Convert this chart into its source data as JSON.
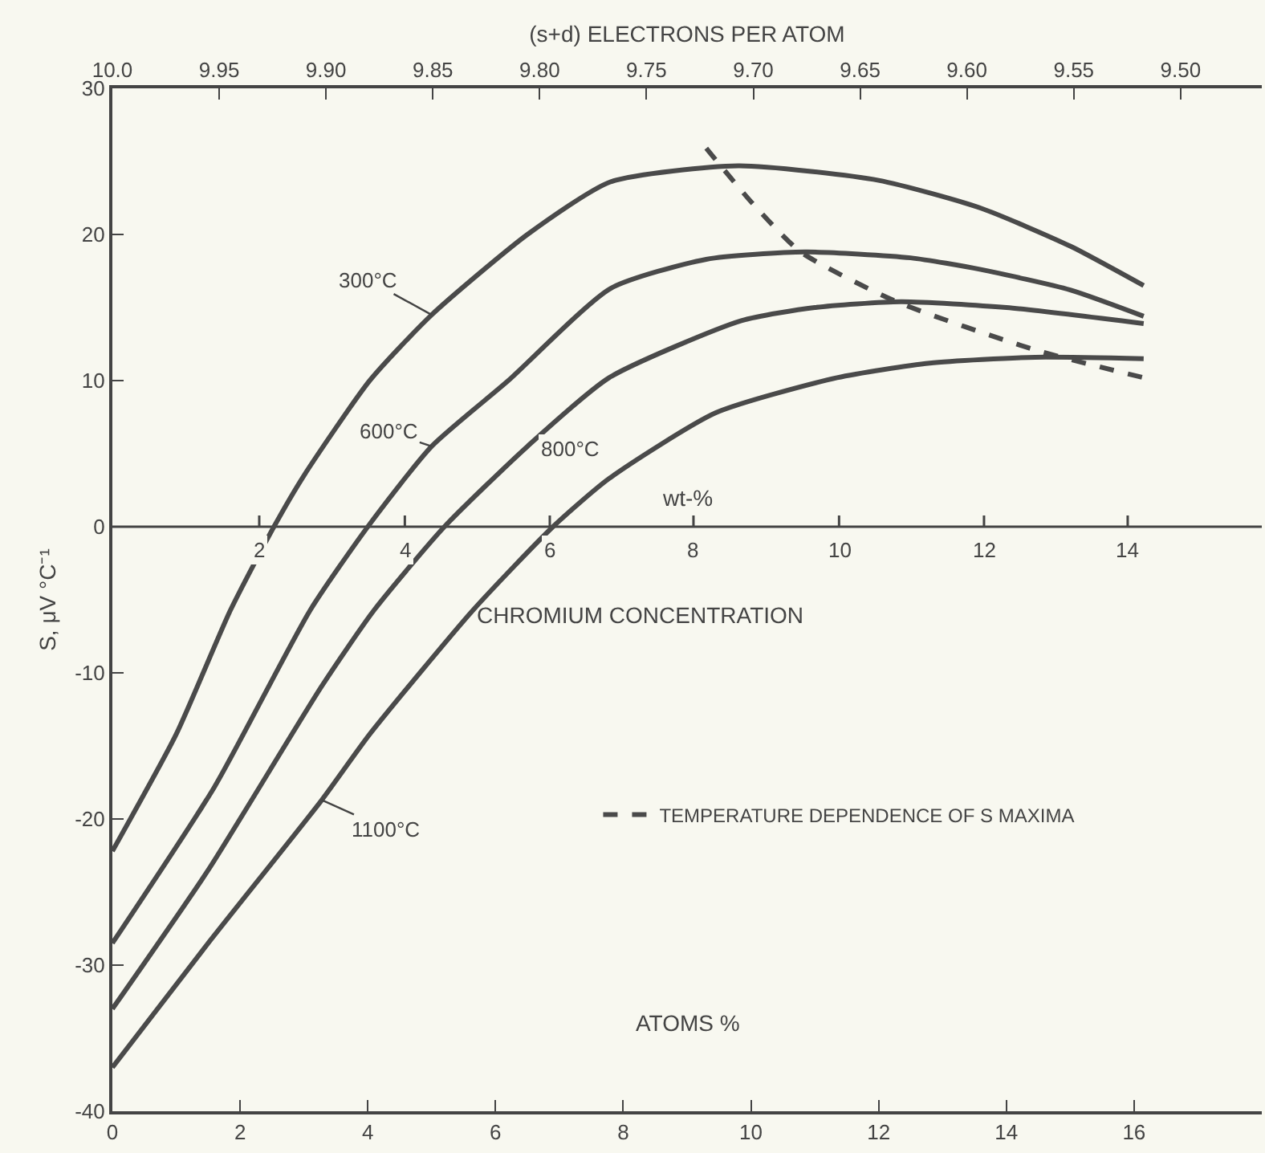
{
  "chart_data": {
    "type": "line",
    "xlabel": "ATOMS %",
    "ylabel": "S, μV °C⁻¹",
    "x2label": "(s+d) ELECTRONS PER ATOM",
    "annotations": [
      "CHROMIUM CONCENTRATION",
      {
        "text": "2",
        "x": 2.3,
        "y": 0
      },
      {
        "text": "4",
        "x": 4.58,
        "y": 0
      },
      {
        "text": "6",
        "x": 6.85,
        "y": 0
      },
      {
        "text": "8",
        "x": 9.1,
        "y": 0
      },
      {
        "text": "10",
        "x": 11.38,
        "y": 0
      },
      {
        "text": "12",
        "x": 13.65,
        "y": 0
      },
      {
        "text": "14",
        "x": 15.9,
        "y": 0
      }
    ],
    "ref_lines": [
      {
        "axis": "y",
        "value": 0,
        "label": "wt-%",
        "color": "#444444"
      }
    ],
    "xlim": [
      0,
      18
    ],
    "xticks": [
      0,
      2,
      4,
      6,
      8,
      10,
      12,
      14,
      16
    ],
    "ylim": [
      -40,
      30
    ],
    "yticks": [
      -40,
      -30,
      -20,
      -10,
      0,
      10,
      20,
      30
    ],
    "x2lim": [
      10.0,
      9.462
    ],
    "x2ticks": [
      {
        "value": 10.0,
        "label": "10.0"
      },
      {
        "value": 9.95,
        "label": "9.95"
      },
      {
        "value": 9.9,
        "label": "9.90"
      },
      {
        "value": 9.85,
        "label": "9.85"
      },
      {
        "value": 9.8,
        "label": "9.80"
      },
      {
        "value": 9.75,
        "label": "9.75"
      },
      {
        "value": 9.7,
        "label": "9.70"
      },
      {
        "value": 9.65,
        "label": "9.65"
      },
      {
        "value": 9.6,
        "label": "9.60"
      },
      {
        "value": 9.55,
        "label": "9.55"
      },
      {
        "value": 9.5,
        "label": "9.50"
      }
    ],
    "grid": false,
    "legend": "bottom",
    "marker": "none",
    "series": [
      {
        "name": "300°C",
        "color": "#4a4a4a",
        "line_style": "solid",
        "x": [
          0,
          1,
          1.85,
          2.53,
          3,
          4.03,
          5,
          6.5,
          7.8,
          9.8,
          12,
          13.6,
          15,
          16.15
        ],
        "values": [
          -22.2,
          -14.2,
          -5.7,
          0,
          3.5,
          10,
          14.5,
          20,
          23.6,
          24.7,
          23.7,
          21.8,
          19.2,
          16.5
        ]
      },
      {
        "name": "600°C",
        "color": "#4a4a4a",
        "line_style": "solid",
        "x": [
          0,
          1.6,
          3.1,
          4.0,
          5,
          6.2,
          7.8,
          9.3,
          10.85,
          12.5,
          13.6,
          15,
          16.15
        ],
        "values": [
          -28.5,
          -17.8,
          -5.7,
          0,
          5.5,
          10,
          16.3,
          18.3,
          18.8,
          18.4,
          17.6,
          16.2,
          14.4
        ]
      },
      {
        "name": "800°C",
        "color": "#4a4a4a",
        "line_style": "solid",
        "x": [
          0,
          1.5,
          3.28,
          4.1,
          5.2,
          6.5,
          7.78,
          9.85,
          11,
          12.35,
          14,
          16.15
        ],
        "values": [
          -33,
          -23.5,
          -10.9,
          -5.7,
          0,
          5.5,
          10.2,
          14.1,
          15,
          15.4,
          15,
          13.9
        ]
      },
      {
        "name": "1100°C",
        "color": "#4a4a4a",
        "line_style": "solid",
        "x": [
          0,
          1.5,
          3.28,
          4.03,
          5.65,
          6.9,
          7.78,
          9.45,
          11.35,
          12.8,
          14.45,
          16.15
        ],
        "values": [
          -37,
          -28.5,
          -18.7,
          -14.2,
          -5.7,
          0,
          3.3,
          7.8,
          10.2,
          11.2,
          11.6,
          11.5
        ]
      },
      {
        "name": "TEMPERATURE DEPENDENCE OF S MAXIMA",
        "color": "#4a4a4a",
        "line_style": "dashed",
        "x": [
          9.3,
          10.03,
          10.78,
          12.28,
          14.45,
          16.15
        ],
        "values": [
          25.9,
          22.1,
          18.8,
          15.4,
          12.1,
          10.2
        ]
      }
    ]
  }
}
